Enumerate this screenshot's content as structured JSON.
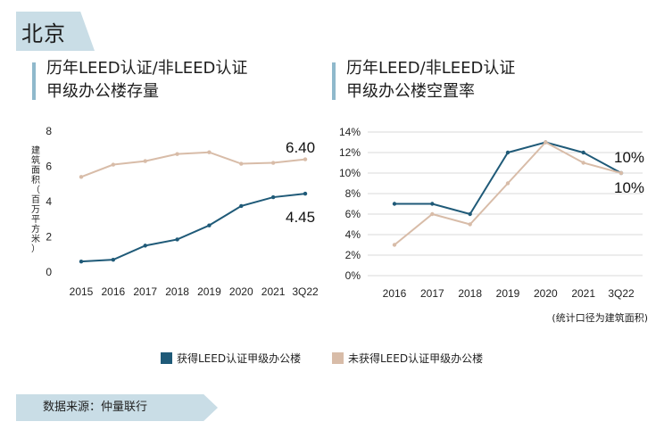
{
  "page": {
    "city": "北京",
    "left_title": [
      "历年LEED认证/非LEED认证",
      "甲级办公楼存量"
    ],
    "right_title": [
      "历年LEED/非LEED认证",
      "甲级办公楼空置率"
    ],
    "note": "(统计口径为建筑面积)",
    "legend": [
      "获得LEED认证甲级办公楼",
      "未获得LEED认证甲级办公楼"
    ],
    "source": "数据来源：仲量联行"
  },
  "colors": {
    "leed": "#1f5a78",
    "non_leed": "#d8bca8",
    "accent": "#c9dde6",
    "bar": "#8fb9cc"
  },
  "chart_data": [
    {
      "type": "line",
      "title": "历年LEED认证/非LEED认证 甲级办公楼存量",
      "ylabel": "建筑面积（百万平方米）",
      "categories": [
        "2015",
        "2016",
        "2017",
        "2018",
        "2019",
        "2020",
        "2021",
        "3Q22"
      ],
      "ylim": [
        0,
        8
      ],
      "yticks": [
        "0",
        "2",
        "4",
        "6",
        "8"
      ],
      "grid": false,
      "series": [
        {
          "name": "获得LEED认证甲级办公楼",
          "values": [
            0.6,
            0.7,
            1.5,
            1.85,
            2.65,
            3.75,
            4.25,
            4.45
          ]
        },
        {
          "name": "未获得LEED认证甲级办公楼",
          "values": [
            5.4,
            6.1,
            6.3,
            6.7,
            6.8,
            6.15,
            6.2,
            6.4
          ]
        }
      ],
      "annotations": [
        "6.40",
        "4.45"
      ]
    },
    {
      "type": "line",
      "title": "历年LEED/非LEED认证 甲级办公楼空置率",
      "categories": [
        "2016",
        "2017",
        "2018",
        "2019",
        "2020",
        "2021",
        "3Q22"
      ],
      "ylim": [
        0,
        14
      ],
      "yticks": [
        "0%",
        "2%",
        "4%",
        "6%",
        "8%",
        "10%",
        "12%",
        "14%"
      ],
      "grid": true,
      "series": [
        {
          "name": "获得LEED认证甲级办公楼",
          "values": [
            7,
            7,
            6,
            12,
            13,
            12,
            10
          ]
        },
        {
          "name": "未获得LEED认证甲级办公楼",
          "values": [
            3,
            6,
            5,
            9,
            13,
            11,
            10
          ]
        }
      ],
      "annotations": [
        "10%",
        "10%"
      ]
    }
  ]
}
